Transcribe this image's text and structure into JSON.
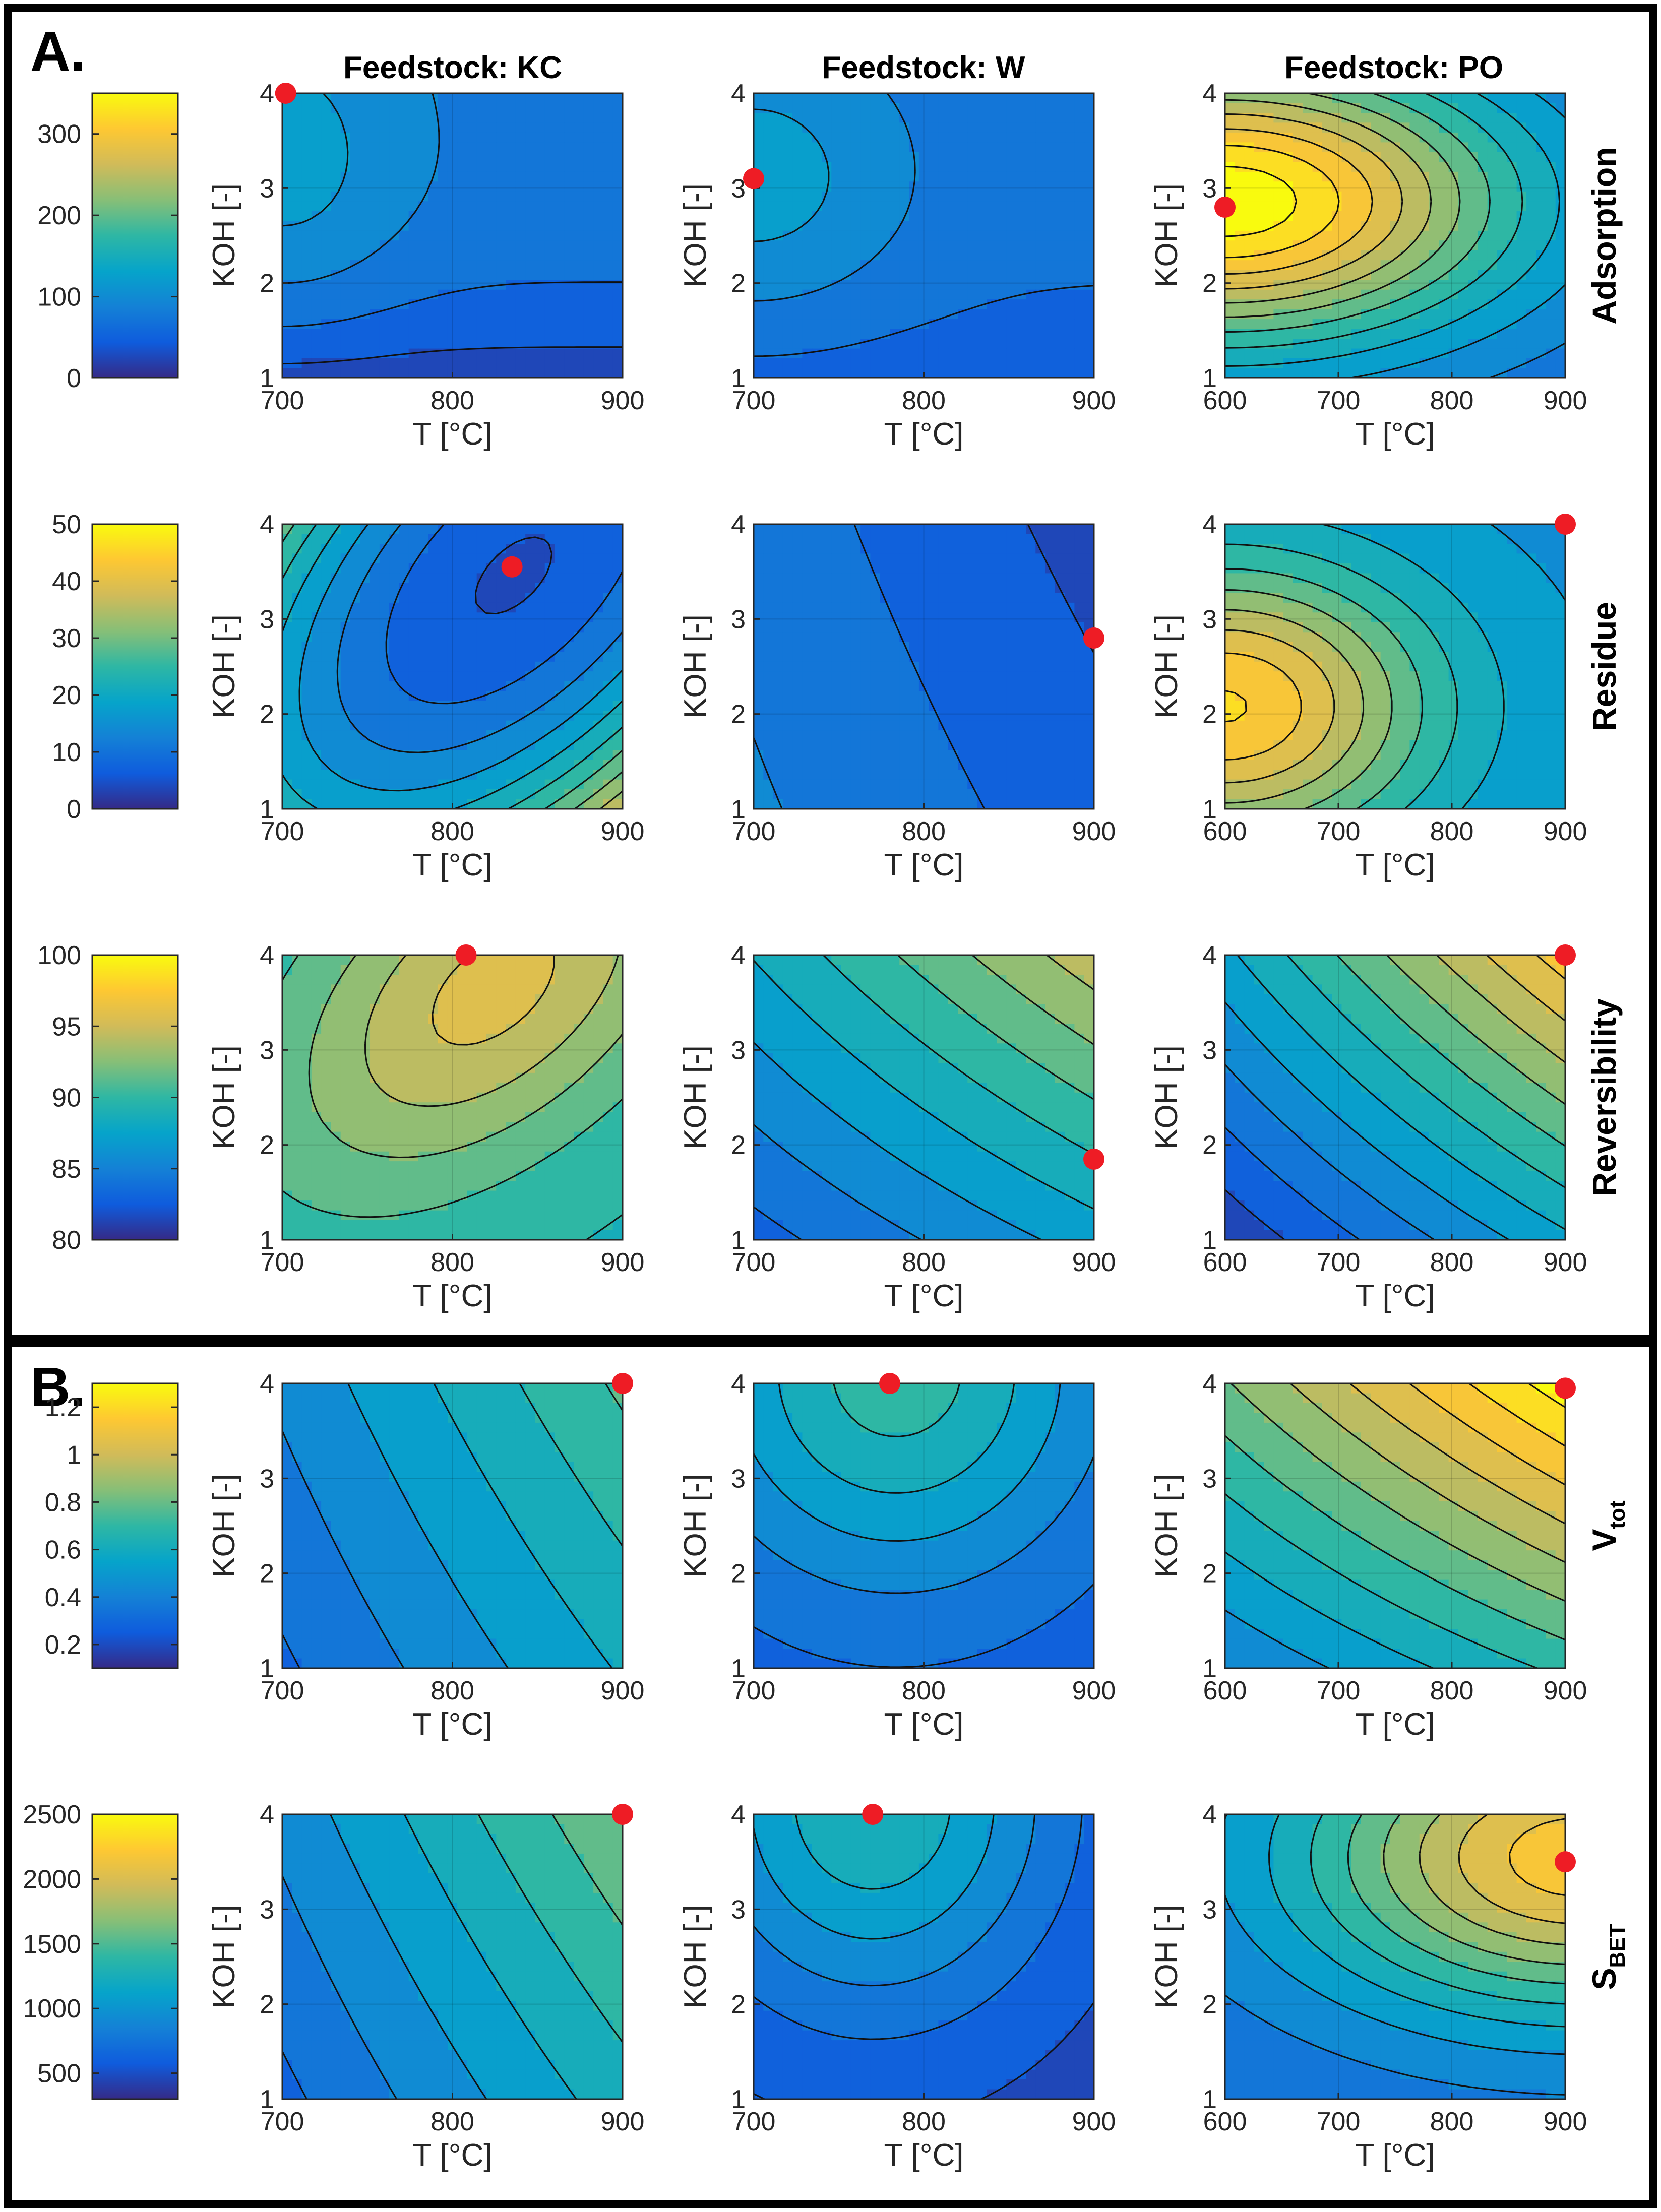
{
  "chart_data": {
    "type": "heatmap",
    "panels": [
      "A.",
      "B."
    ],
    "column_titles": [
      "Feedstock: KC",
      "Feedstock: W",
      "Feedstock: PO"
    ],
    "xlabel": "T [°C]",
    "ylabel": "KOH [-]",
    "rows": [
      {
        "key": "adsorption",
        "label": "Adsorption",
        "label_sub": "",
        "panel": "A.",
        "colorbar": {
          "range": [
            0,
            350
          ],
          "ticks": [
            "0",
            "100",
            "200",
            "300"
          ],
          "tick_values": [
            0,
            100,
            200,
            300
          ]
        },
        "plots": [
          {
            "feedstock": "KC",
            "xlim": [
              700,
              900
            ],
            "xticks": [
              "700",
              "800",
              "900"
            ],
            "ylim": [
              1,
              4
            ],
            "yticks": [
              "1",
              "2",
              "3",
              "4"
            ],
            "field": {
              "kind": "gaussian",
              "base": 80,
              "peak": 45,
              "cx": 0.0,
              "cy": 0.75,
              "sx": 0.35,
              "sy": 0.55,
              "corr": 0.0,
              "ydrop": 60
            },
            "optimum": {
              "T": 702,
              "KOH": 4.0
            }
          },
          {
            "feedstock": "W",
            "xlim": [
              700,
              900
            ],
            "xticks": [
              "700",
              "800",
              "900"
            ],
            "ylim": [
              1,
              4
            ],
            "yticks": [
              "1",
              "2",
              "3",
              "4"
            ],
            "field": {
              "kind": "gaussian",
              "base": 70,
              "peak": 55,
              "cx": 0.0,
              "cy": 0.69,
              "sx": 0.45,
              "sy": 0.5,
              "corr": 0.0,
              "ydrop": 25
            },
            "optimum": {
              "T": 700,
              "KOH": 3.1
            }
          },
          {
            "feedstock": "PO",
            "xlim": [
              600,
              900
            ],
            "xticks": [
              "600",
              "700",
              "800",
              "900"
            ],
            "ylim": [
              1,
              4
            ],
            "yticks": [
              "1",
              "2",
              "3",
              "4"
            ],
            "field": {
              "kind": "gaussian",
              "base": 60,
              "peak": 295,
              "cx": 0.0,
              "cy": 0.62,
              "sx": 0.85,
              "sy": 0.5,
              "corr": 0.0,
              "ydrop": 0
            },
            "optimum": {
              "T": 600,
              "KOH": 2.8
            }
          }
        ]
      },
      {
        "key": "residue",
        "label": "Residue",
        "label_sub": "",
        "panel": "A.",
        "colorbar": {
          "range": [
            0,
            50
          ],
          "ticks": [
            "0",
            "10",
            "20",
            "30",
            "40",
            "50"
          ],
          "tick_values": [
            0,
            10,
            20,
            30,
            40,
            50
          ]
        },
        "plots": [
          {
            "feedstock": "KC",
            "xlim": [
              700,
              900
            ],
            "xticks": [
              "700",
              "800",
              "900"
            ],
            "ylim": [
              1,
              4
            ],
            "yticks": [
              "1",
              "2",
              "3",
              "4"
            ],
            "field": {
              "kind": "bowl",
              "base": 5,
              "peak": 10,
              "cx": 0.68,
              "cy": 0.82,
              "sx": 0.5,
              "sy": 0.6,
              "corr": -0.55,
              "ydrop": 0
            },
            "optimum": {
              "T": 835,
              "KOH": 3.55
            }
          },
          {
            "feedstock": "W",
            "xlim": [
              700,
              900
            ],
            "xticks": [
              "700",
              "800",
              "900"
            ],
            "ylim": [
              1,
              4
            ],
            "yticks": [
              "1",
              "2",
              "3",
              "4"
            ],
            "field": {
              "kind": "linear",
              "base": 13,
              "peak": -8,
              "cx": 0.0,
              "cy": 0.0,
              "sx": 1.0,
              "sy": 1.0,
              "corr": 0.25,
              "ydrop": 0
            },
            "optimum": {
              "T": 900,
              "KOH": 2.8
            }
          },
          {
            "feedstock": "PO",
            "xlim": [
              600,
              900
            ],
            "xticks": [
              "600",
              "700",
              "800",
              "900"
            ],
            "ylim": [
              1,
              4
            ],
            "yticks": [
              "1",
              "2",
              "3",
              "4"
            ],
            "field": {
              "kind": "gaussian",
              "base": 15,
              "peak": 30,
              "cx": 0.0,
              "cy": 0.36,
              "sx": 0.6,
              "sy": 0.5,
              "corr": 0.0,
              "ydrop": 0
            },
            "optimum": {
              "T": 900,
              "KOH": 4.0
            }
          }
        ]
      },
      {
        "key": "reversibility",
        "label": "Reversibility",
        "label_sub": "",
        "panel": "A.",
        "colorbar": {
          "range": [
            80,
            100
          ],
          "ticks": [
            "80",
            "85",
            "90",
            "95",
            "100"
          ],
          "tick_values": [
            80,
            85,
            90,
            95,
            100
          ]
        },
        "plots": [
          {
            "feedstock": "KC",
            "xlim": [
              700,
              900
            ],
            "xticks": [
              "700",
              "800",
              "900"
            ],
            "ylim": [
              1,
              4
            ],
            "yticks": [
              "1",
              "2",
              "3",
              "4"
            ],
            "field": {
              "kind": "gaussian",
              "base": 89,
              "peak": 6.5,
              "cx": 0.62,
              "cy": 0.88,
              "sx": 0.55,
              "sy": 0.6,
              "corr": -0.5,
              "ydrop": 0
            },
            "optimum": {
              "T": 808,
              "KOH": 4.0
            }
          },
          {
            "feedstock": "W",
            "xlim": [
              700,
              900
            ],
            "xticks": [
              "700",
              "800",
              "900"
            ],
            "ylim": [
              1,
              4
            ],
            "yticks": [
              "1",
              "2",
              "3",
              "4"
            ],
            "field": {
              "kind": "linear",
              "base": 83,
              "peak": 9,
              "cx": 0.0,
              "cy": 0.0,
              "sx": 1.0,
              "sy": 1.0,
              "corr": 0.55,
              "ydrop": 0
            },
            "optimum": {
              "T": 900,
              "KOH": 1.85
            }
          },
          {
            "feedstock": "PO",
            "xlim": [
              600,
              900
            ],
            "xticks": [
              "600",
              "700",
              "800",
              "900"
            ],
            "ylim": [
              1,
              4
            ],
            "yticks": [
              "1",
              "2",
              "3",
              "4"
            ],
            "field": {
              "kind": "linear",
              "base": 81,
              "peak": 13,
              "cx": 0.0,
              "cy": 0.0,
              "sx": 1.0,
              "sy": 1.0,
              "corr": 0.5,
              "ydrop": 0
            },
            "optimum": {
              "T": 900,
              "KOH": 4.0
            }
          }
        ]
      },
      {
        "key": "vtot",
        "label": "V",
        "label_sub": "tot",
        "panel": "B.",
        "colorbar": {
          "range": [
            0.1,
            1.3
          ],
          "ticks": [
            "0.2",
            "0.4",
            "0.6",
            "0.8",
            "1",
            "1.2"
          ],
          "tick_values": [
            0.2,
            0.4,
            0.6,
            0.8,
            1.0,
            1.2
          ]
        },
        "plots": [
          {
            "feedstock": "KC",
            "xlim": [
              700,
              900
            ],
            "xticks": [
              "700",
              "800",
              "900"
            ],
            "ylim": [
              1,
              4
            ],
            "yticks": [
              "1",
              "2",
              "3",
              "4"
            ],
            "field": {
              "kind": "linear",
              "base": 0.3,
              "peak": 0.4,
              "cx": 0.0,
              "cy": 0.0,
              "sx": 1.0,
              "sy": 1.0,
              "corr": 0.3,
              "ydrop": 0
            },
            "optimum": {
              "T": 900,
              "KOH": 4.0
            }
          },
          {
            "feedstock": "W",
            "xlim": [
              700,
              900
            ],
            "xticks": [
              "700",
              "800",
              "900"
            ],
            "ylim": [
              1,
              4
            ],
            "yticks": [
              "1",
              "2",
              "3",
              "4"
            ],
            "field": {
              "kind": "gaussian",
              "base": 0.25,
              "peak": 0.45,
              "cx": 0.42,
              "cy": 1.05,
              "sx": 0.6,
              "sy": 0.75,
              "corr": 0.0,
              "ydrop": 0
            },
            "optimum": {
              "T": 780,
              "KOH": 4.0
            }
          },
          {
            "feedstock": "PO",
            "xlim": [
              600,
              900
            ],
            "xticks": [
              "600",
              "700",
              "800",
              "900"
            ],
            "ylim": [
              1,
              4
            ],
            "yticks": [
              "1",
              "2",
              "3",
              "4"
            ],
            "field": {
              "kind": "linear",
              "base": 0.4,
              "peak": 0.7,
              "cx": 0.0,
              "cy": 0.0,
              "sx": 1.0,
              "sy": 1.0,
              "corr": 0.6,
              "ydrop": 0
            },
            "optimum": {
              "T": 900,
              "KOH": 3.95
            }
          }
        ]
      },
      {
        "key": "sbet",
        "label": "S",
        "label_sub": "BET",
        "panel": "B.",
        "colorbar": {
          "range": [
            300,
            2500
          ],
          "ticks": [
            "500",
            "1000",
            "1500",
            "2000",
            "2500"
          ],
          "tick_values": [
            500,
            1000,
            1500,
            2000,
            2500
          ]
        },
        "plots": [
          {
            "feedstock": "KC",
            "xlim": [
              700,
              900
            ],
            "xticks": [
              "700",
              "800",
              "900"
            ],
            "ylim": [
              1,
              4
            ],
            "yticks": [
              "1",
              "2",
              "3",
              "4"
            ],
            "field": {
              "kind": "linear",
              "base": 650,
              "peak": 850,
              "cx": 0.0,
              "cy": 0.0,
              "sx": 1.0,
              "sy": 1.0,
              "corr": 0.3,
              "ydrop": 0
            },
            "optimum": {
              "T": 900,
              "KOH": 4.0
            }
          },
          {
            "feedstock": "W",
            "xlim": [
              700,
              900
            ],
            "xticks": [
              "700",
              "800",
              "900"
            ],
            "ylim": [
              1,
              4
            ],
            "yticks": [
              "1",
              "2",
              "3",
              "4"
            ],
            "field": {
              "kind": "gaussian",
              "base": 450,
              "peak": 850,
              "cx": 0.35,
              "cy": 1.05,
              "sx": 0.55,
              "sy": 0.75,
              "corr": 0.0,
              "ydrop": 0
            },
            "optimum": {
              "T": 770,
              "KOH": 4.0
            }
          },
          {
            "feedstock": "PO",
            "xlim": [
              600,
              900
            ],
            "xticks": [
              "600",
              "700",
              "800",
              "900"
            ],
            "ylim": [
              1,
              4
            ],
            "yticks": [
              "1",
              "2",
              "3",
              "4"
            ],
            "field": {
              "kind": "gaussian",
              "base": 700,
              "peak": 1500,
              "cx": 1.05,
              "cy": 0.85,
              "sx": 0.85,
              "sy": 0.55,
              "corr": 0.0,
              "ydrop": 0
            },
            "optimum": {
              "T": 900,
              "KOH": 3.5
            }
          }
        ]
      }
    ]
  }
}
